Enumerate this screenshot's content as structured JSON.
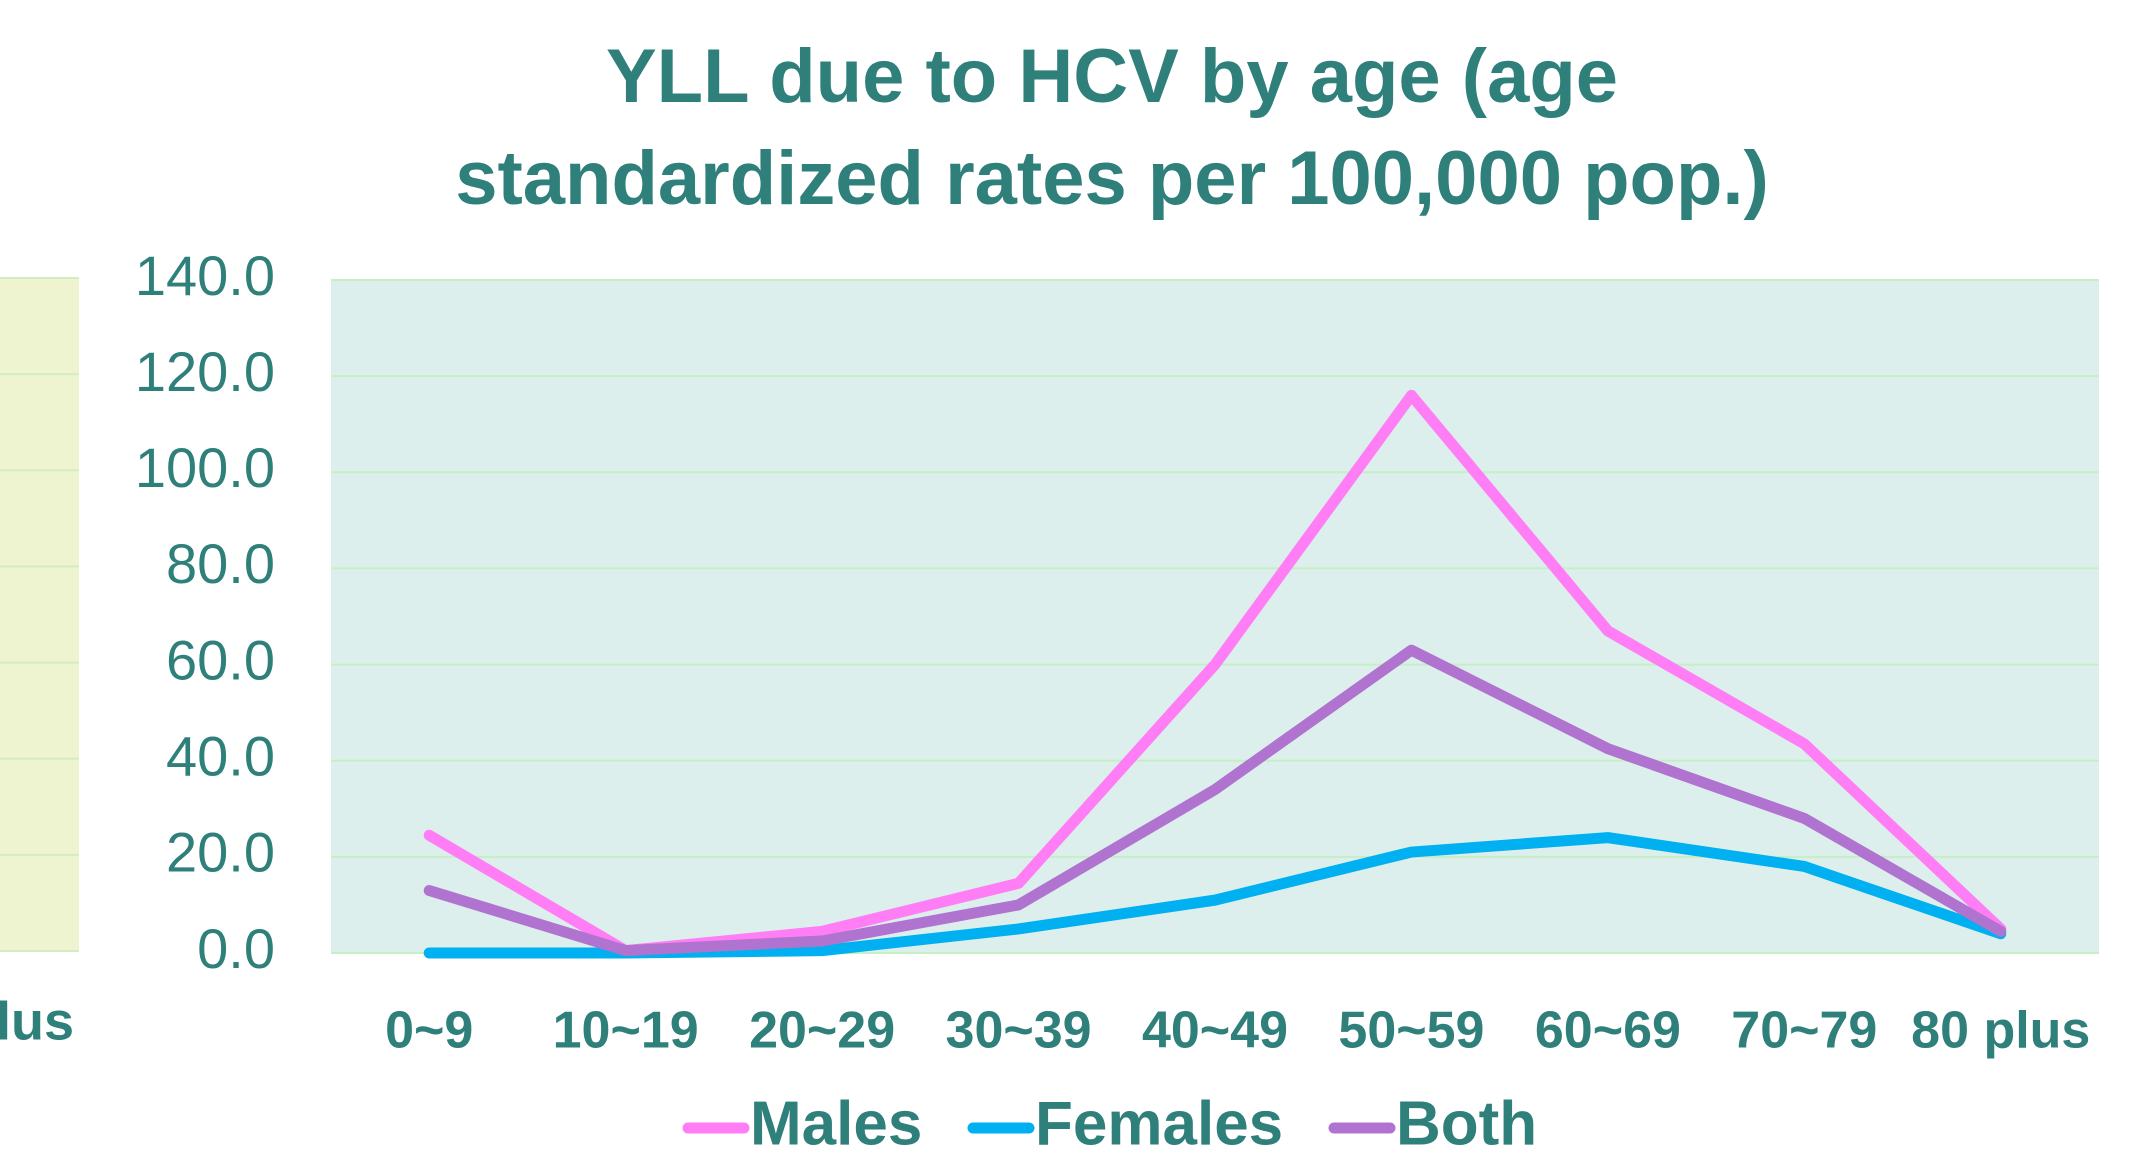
{
  "chart_data": {
    "type": "line",
    "title": [
      "YLL due to HCV by age (age",
      "standardized rates per 100,000 pop.)"
    ],
    "categories": [
      "0~9",
      "10~19",
      "20~29",
      "30~39",
      "40~49",
      "50~59",
      "60~69",
      "70~79",
      "80 plus"
    ],
    "series": [
      {
        "name": "Males",
        "color": "#ff7ef5",
        "values": [
          24.5,
          0.5,
          4.5,
          14.5,
          60,
          116,
          67,
          43.5,
          5
        ]
      },
      {
        "name": "Females",
        "color": "#00b0f0",
        "values": [
          0,
          0,
          0.5,
          5,
          11,
          21,
          24,
          18,
          4
        ]
      },
      {
        "name": "Both",
        "color": "#b073d0",
        "values": [
          13,
          0.5,
          2.5,
          10,
          34,
          63,
          42.5,
          28,
          4.5
        ]
      }
    ],
    "ylim": [
      0,
      140
    ],
    "yticks": [
      {
        "value": 0,
        "label": "0.0"
      },
      {
        "value": 20,
        "label": "20.0"
      },
      {
        "value": 40,
        "label": "40.0"
      },
      {
        "value": 60,
        "label": "60.0"
      },
      {
        "value": 80,
        "label": "80.0"
      },
      {
        "value": 100,
        "label": "100.0"
      },
      {
        "value": 120,
        "label": "120.0"
      },
      {
        "value": 140,
        "label": "140.0"
      }
    ],
    "grid": true,
    "legend": "bottom",
    "neighbor_fragment": "lus"
  }
}
